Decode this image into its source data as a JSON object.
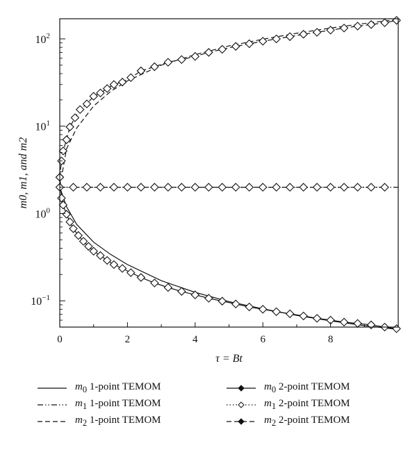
{
  "chart_data": {
    "type": "line",
    "xlabel": "τ = Bt",
    "ylabel": "m0, m1, and m2",
    "x_ticks": [
      "0",
      "2",
      "4",
      "6",
      "8"
    ],
    "y_ticks": [
      {
        "base": "10",
        "exp": "−1"
      },
      {
        "base": "10",
        "exp": "0"
      },
      {
        "base": "10",
        "exp": "1"
      },
      {
        "base": "10",
        "exp": "2"
      }
    ],
    "xlim": [
      0,
      10
    ],
    "ylim": [
      0.05,
      170
    ],
    "yscale": "log",
    "grid": false,
    "legend_position": "bottom",
    "series": [
      {
        "name": "m0 1-point TEMOM",
        "key": "m0",
        "style": "solid",
        "marker": "none",
        "x": [
          0,
          0.2,
          0.5,
          1,
          1.5,
          2,
          3,
          4,
          5,
          6,
          7,
          8,
          9,
          10
        ],
        "y": [
          2.0,
          1.2,
          0.75,
          0.47,
          0.34,
          0.26,
          0.17,
          0.125,
          0.098,
          0.081,
          0.068,
          0.059,
          0.052,
          0.047
        ]
      },
      {
        "name": "m1 1-point TEMOM",
        "key": "m1",
        "style": "dashdot",
        "marker": "none",
        "x": [
          0,
          10
        ],
        "y": [
          2.0,
          2.0
        ]
      },
      {
        "name": "m2 1-point TEMOM",
        "key": "m2",
        "style": "dashed",
        "marker": "none",
        "x": [
          0,
          0.2,
          0.5,
          1,
          1.5,
          2,
          3,
          4,
          5,
          6,
          7,
          8,
          9,
          10
        ],
        "y": [
          2.0,
          5.5,
          9.5,
          17,
          25,
          33,
          50,
          66,
          83,
          99,
          116,
          133,
          150,
          167
        ]
      },
      {
        "name": "m0 2-point TEMOM",
        "key": "m0",
        "style": "solid",
        "marker": "diamond",
        "x": [
          0,
          0.05,
          0.1,
          0.2,
          0.3,
          0.4,
          0.55,
          0.7,
          0.85,
          1.0,
          1.2,
          1.4,
          1.6,
          1.85,
          2.1,
          2.4,
          2.8,
          3.2,
          3.6,
          4.0,
          4.4,
          4.8,
          5.2,
          5.6,
          6.0,
          6.4,
          6.8,
          7.2,
          7.6,
          8.0,
          8.4,
          8.8,
          9.2,
          9.6,
          9.95
        ],
        "y": [
          2.6,
          1.5,
          1.25,
          0.98,
          0.8,
          0.67,
          0.56,
          0.48,
          0.42,
          0.37,
          0.33,
          0.29,
          0.26,
          0.235,
          0.21,
          0.185,
          0.16,
          0.142,
          0.128,
          0.117,
          0.107,
          0.099,
          0.092,
          0.085,
          0.08,
          0.075,
          0.071,
          0.067,
          0.063,
          0.06,
          0.057,
          0.055,
          0.053,
          0.05,
          0.048
        ]
      },
      {
        "name": "m1 2-point TEMOM",
        "key": "m1",
        "style": "dotted",
        "marker": "diamond",
        "x": [
          0,
          0.4,
          0.8,
          1.2,
          1.6,
          2.0,
          2.4,
          2.8,
          3.2,
          3.6,
          4.0,
          4.4,
          4.8,
          5.2,
          5.6,
          6.0,
          6.4,
          6.8,
          7.2,
          7.6,
          8.0,
          8.4,
          8.8,
          9.2,
          9.6
        ],
        "y": [
          2,
          2,
          2,
          2,
          2,
          2,
          2,
          2,
          2,
          2,
          2,
          2,
          2,
          2,
          2,
          2,
          2,
          2,
          2,
          2,
          2,
          2,
          2,
          2,
          2
        ]
      },
      {
        "name": "m2 2-point TEMOM",
        "key": "m2",
        "style": "dashed",
        "marker": "diamond",
        "x": [
          0,
          0.05,
          0.1,
          0.2,
          0.3,
          0.45,
          0.6,
          0.8,
          1.0,
          1.2,
          1.4,
          1.6,
          1.85,
          2.1,
          2.4,
          2.8,
          3.2,
          3.6,
          4.0,
          4.4,
          4.8,
          5.2,
          5.6,
          6.0,
          6.4,
          6.8,
          7.2,
          7.6,
          8.0,
          8.4,
          8.8,
          9.2,
          9.6,
          9.95
        ],
        "y": [
          2.6,
          4.0,
          5.2,
          7.0,
          9.8,
          12.5,
          15.5,
          18,
          22,
          24,
          27,
          30,
          32,
          36,
          43,
          48,
          54,
          58,
          63,
          70,
          76,
          82,
          88,
          94,
          100,
          106,
          113,
          119,
          126,
          133,
          140,
          146,
          153,
          163
        ]
      }
    ]
  },
  "legend": {
    "items": [
      {
        "sym": "m",
        "sub": "0",
        "text": " 1-point TEMOM"
      },
      {
        "sym": "m",
        "sub": "0",
        "text": " 2-point TEMOM"
      },
      {
        "sym": "m",
        "sub": "1",
        "text": " 1-point TEMOM"
      },
      {
        "sym": "m",
        "sub": "1",
        "text": " 2-point TEMOM"
      },
      {
        "sym": "m",
        "sub": "2",
        "text": " 1-point TEMOM"
      },
      {
        "sym": "m",
        "sub": "2",
        "text": " 2-point TEMOM"
      }
    ]
  }
}
